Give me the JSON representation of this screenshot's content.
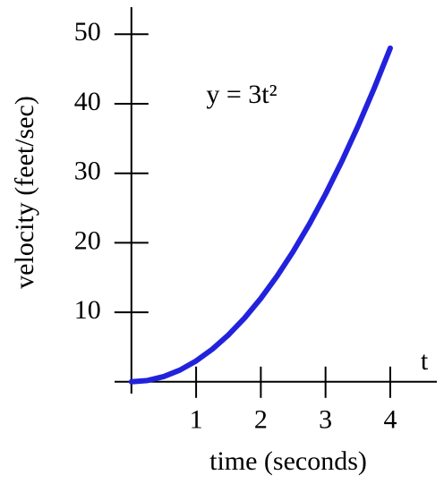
{
  "chart_data": {
    "type": "line",
    "annotation": "y = 3t²",
    "x_label": "time (seconds)",
    "x_axis_name": "t",
    "y_label": "velocity  (feet/sec)",
    "x": [
      0,
      0.25,
      0.5,
      0.75,
      1,
      1.25,
      1.5,
      1.75,
      2,
      2.25,
      2.5,
      2.75,
      3,
      3.25,
      3.5,
      3.75,
      4
    ],
    "series": [
      {
        "color": "#2222dd",
        "values": [
          0,
          0.1875,
          0.75,
          1.6875,
          3,
          4.6875,
          6.75,
          9.1875,
          12,
          15.1875,
          18.75,
          22.6875,
          27,
          31.6875,
          36.75,
          42.1875,
          48
        ]
      }
    ],
    "xlim": [
      -0.26,
      4.72
    ],
    "ylim": [
      -1.7,
      53.9
    ],
    "xticks": [
      1,
      2,
      3,
      4
    ],
    "yticks": [
      10,
      20,
      30,
      40,
      50
    ]
  }
}
